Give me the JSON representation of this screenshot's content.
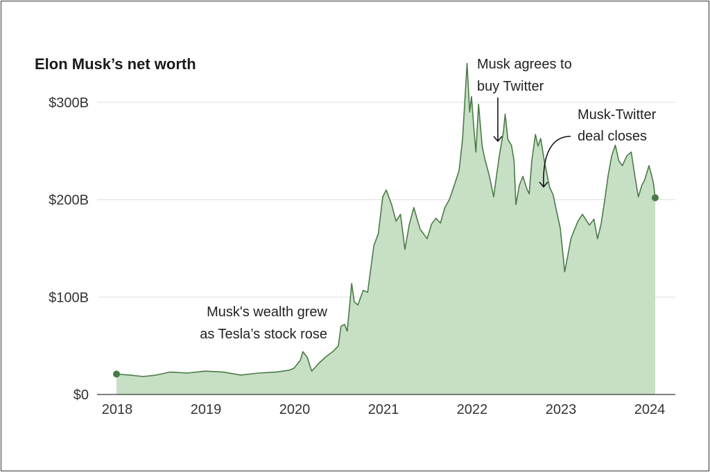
{
  "chart_data": {
    "type": "area",
    "title": "Elon Musk’s net worth",
    "xlabel": "",
    "ylabel": "",
    "xlim": [
      2018,
      2024.1
    ],
    "ylim": [
      0,
      340
    ],
    "grid": true,
    "colors": {
      "line": "#4a7a45",
      "fill": "#c6dfc5",
      "grid": "#dddddd",
      "axis": "#555555"
    },
    "y_ticks": [
      {
        "value": 0,
        "label": "$0"
      },
      {
        "value": 100,
        "label": "$100B"
      },
      {
        "value": 200,
        "label": "$200B"
      },
      {
        "value": 300,
        "label": "$300B"
      }
    ],
    "x_ticks": [
      {
        "value": 2018,
        "label": "2018"
      },
      {
        "value": 2019,
        "label": "2019"
      },
      {
        "value": 2020,
        "label": "2020"
      },
      {
        "value": 2021,
        "label": "2021"
      },
      {
        "value": 2022,
        "label": "2022"
      },
      {
        "value": 2023,
        "label": "2023"
      },
      {
        "value": 2024,
        "label": "2024"
      }
    ],
    "series": [
      {
        "points": [
          [
            2018.0,
            21
          ],
          [
            2018.15,
            20
          ],
          [
            2018.3,
            18.5
          ],
          [
            2018.45,
            20
          ],
          [
            2018.6,
            23
          ],
          [
            2018.8,
            22
          ],
          [
            2019.0,
            24
          ],
          [
            2019.2,
            23
          ],
          [
            2019.4,
            20
          ],
          [
            2019.6,
            22
          ],
          [
            2019.8,
            23
          ],
          [
            2019.95,
            25
          ],
          [
            2020.0,
            27
          ],
          [
            2020.07,
            35
          ],
          [
            2020.1,
            44
          ],
          [
            2020.15,
            38
          ],
          [
            2020.2,
            24
          ],
          [
            2020.28,
            32
          ],
          [
            2020.35,
            38
          ],
          [
            2020.45,
            45
          ],
          [
            2020.5,
            50
          ],
          [
            2020.53,
            70
          ],
          [
            2020.57,
            72
          ],
          [
            2020.6,
            65
          ],
          [
            2020.65,
            114
          ],
          [
            2020.68,
            95
          ],
          [
            2020.72,
            92
          ],
          [
            2020.78,
            107
          ],
          [
            2020.83,
            105
          ],
          [
            2020.9,
            153
          ],
          [
            2020.95,
            165
          ],
          [
            2021.0,
            203
          ],
          [
            2021.04,
            210
          ],
          [
            2021.1,
            195
          ],
          [
            2021.15,
            178
          ],
          [
            2021.2,
            185
          ],
          [
            2021.25,
            149
          ],
          [
            2021.3,
            175
          ],
          [
            2021.35,
            192
          ],
          [
            2021.42,
            170
          ],
          [
            2021.5,
            160
          ],
          [
            2021.55,
            175
          ],
          [
            2021.6,
            181
          ],
          [
            2021.65,
            176
          ],
          [
            2021.7,
            192
          ],
          [
            2021.75,
            200
          ],
          [
            2021.8,
            213
          ],
          [
            2021.86,
            230
          ],
          [
            2021.9,
            263
          ],
          [
            2021.95,
            340
          ],
          [
            2021.98,
            290
          ],
          [
            2022.0,
            306
          ],
          [
            2022.03,
            270
          ],
          [
            2022.05,
            249
          ],
          [
            2022.08,
            298
          ],
          [
            2022.12,
            255
          ],
          [
            2022.15,
            242
          ],
          [
            2022.2,
            225
          ],
          [
            2022.25,
            203
          ],
          [
            2022.29,
            230
          ],
          [
            2022.32,
            249
          ],
          [
            2022.36,
            270
          ],
          [
            2022.38,
            288
          ],
          [
            2022.41,
            262
          ],
          [
            2022.45,
            256
          ],
          [
            2022.48,
            240
          ],
          [
            2022.5,
            195
          ],
          [
            2022.54,
            215
          ],
          [
            2022.58,
            224
          ],
          [
            2022.62,
            212
          ],
          [
            2022.65,
            206
          ],
          [
            2022.68,
            240
          ],
          [
            2022.72,
            267
          ],
          [
            2022.75,
            255
          ],
          [
            2022.78,
            263
          ],
          [
            2022.82,
            240
          ],
          [
            2022.88,
            213
          ],
          [
            2022.92,
            205
          ],
          [
            2022.95,
            192
          ],
          [
            2023.0,
            171
          ],
          [
            2023.03,
            145
          ],
          [
            2023.05,
            126
          ],
          [
            2023.08,
            140
          ],
          [
            2023.12,
            160
          ],
          [
            2023.15,
            167
          ],
          [
            2023.2,
            178
          ],
          [
            2023.25,
            185
          ],
          [
            2023.3,
            178
          ],
          [
            2023.33,
            174
          ],
          [
            2023.38,
            180
          ],
          [
            2023.42,
            160
          ],
          [
            2023.46,
            175
          ],
          [
            2023.5,
            199
          ],
          [
            2023.54,
            225
          ],
          [
            2023.58,
            245
          ],
          [
            2023.62,
            256
          ],
          [
            2023.66,
            240
          ],
          [
            2023.7,
            235
          ],
          [
            2023.75,
            245
          ],
          [
            2023.8,
            249
          ],
          [
            2023.84,
            225
          ],
          [
            2023.88,
            203
          ],
          [
            2023.92,
            215
          ],
          [
            2023.95,
            220
          ],
          [
            2024.0,
            235
          ],
          [
            2024.03,
            225
          ],
          [
            2024.05,
            217
          ],
          [
            2024.07,
            202
          ]
        ]
      }
    ],
    "annotations": [
      {
        "lines": [
          "Musk's wealth grew",
          "as Tesla’s stock rose"
        ]
      },
      {
        "lines": [
          "Musk agrees to",
          "buy Twitter"
        ],
        "year": 2022.33
      },
      {
        "lines": [
          "Musk-Twitter",
          "deal closes"
        ],
        "year": 2022.82
      }
    ]
  }
}
